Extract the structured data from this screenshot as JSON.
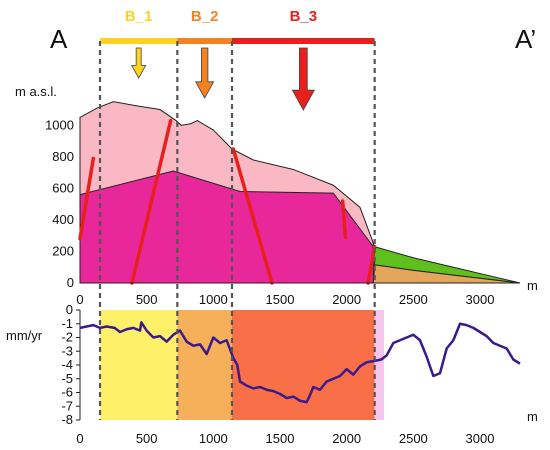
{
  "chart_data": [
    {
      "type": "area",
      "section_labels": {
        "start": "A",
        "end": "A’"
      },
      "xlabel": "m",
      "ylabel": "m a.s.l.",
      "xlim": [
        0,
        3300
      ],
      "ylim": [
        0,
        1300
      ],
      "x_ticks": [
        0,
        500,
        1000,
        1500,
        2000,
        2500,
        3000
      ],
      "y_ticks": [
        0,
        200,
        400,
        600,
        800,
        1000
      ],
      "blocks": [
        {
          "name": "B_1",
          "x_range": [
            150,
            730
          ],
          "color": "#ffd21f",
          "arrow_size": "small"
        },
        {
          "name": "B_2",
          "x_range": [
            730,
            1140
          ],
          "color": "#f5821f",
          "arrow_size": "medium"
        },
        {
          "name": "B_3",
          "x_range": [
            1140,
            2210
          ],
          "color": "#e8201c",
          "arrow_size": "large"
        }
      ],
      "surface_profile": {
        "x": [
          0,
          130,
          250,
          450,
          600,
          720,
          760,
          830,
          880,
          1000,
          1140,
          1300,
          1600,
          1900,
          2100,
          2210,
          2500,
          2800,
          3100,
          3300
        ],
        "y": [
          1050,
          1110,
          1150,
          1120,
          1100,
          1030,
          1000,
          1010,
          1030,
          970,
          850,
          780,
          720,
          620,
          480,
          230,
          160,
          100,
          40,
          0
        ]
      },
      "upper_unit_top": {
        "color": "#f9b8c4"
      },
      "lower_unit_top": {
        "x": [
          0,
          700,
          1200,
          1900,
          2200
        ],
        "y": [
          560,
          710,
          580,
          570,
          230
        ],
        "color": "#e8289a"
      },
      "right_wedges": [
        {
          "color": "#5fbf1c"
        },
        {
          "color": "#e3a65c"
        }
      ],
      "faults": [
        {
          "x": [
            0,
            100
          ],
          "y": [
            280,
            790
          ]
        },
        {
          "x": [
            390,
            680
          ],
          "y": [
            0,
            1030
          ]
        },
        {
          "x": [
            1150,
            1440
          ],
          "y": [
            850,
            0
          ]
        },
        {
          "x": [
            1970,
            1990
          ],
          "y": [
            520,
            290
          ]
        },
        {
          "x": [
            2160,
            2210
          ],
          "y": [
            0,
            230
          ]
        }
      ],
      "fault_color": "#e8201c",
      "dashed_verticals_x": [
        150,
        730,
        1140,
        2210
      ]
    },
    {
      "type": "line",
      "xlabel": "m",
      "ylabel": "mm/yr",
      "xlim": [
        0,
        3300
      ],
      "ylim": [
        -8,
        0
      ],
      "x_ticks": [
        0,
        500,
        1000,
        1500,
        2000,
        2500,
        3000
      ],
      "y_ticks": [
        0,
        -1,
        -2,
        -3,
        -4,
        -5,
        -6,
        -7,
        -8
      ],
      "shaded_bands": [
        {
          "x_range": [
            150,
            730
          ],
          "color": "#fff06a"
        },
        {
          "x_range": [
            730,
            1140
          ],
          "color": "#f7b05a"
        },
        {
          "x_range": [
            1140,
            2210
          ],
          "color": "#f97048"
        },
        {
          "x_range": [
            2210,
            2280
          ],
          "color": "#f4c6ee"
        }
      ],
      "series": [
        {
          "color": "#3a1b8c",
          "x": [
            0,
            50,
            100,
            150,
            200,
            260,
            300,
            350,
            400,
            450,
            460,
            500,
            550,
            600,
            650,
            700,
            750,
            800,
            850,
            900,
            950,
            1000,
            1050,
            1100,
            1150,
            1180,
            1200,
            1250,
            1300,
            1350,
            1400,
            1450,
            1500,
            1550,
            1600,
            1650,
            1700,
            1720,
            1750,
            1800,
            1850,
            1900,
            1950,
            2000,
            2050,
            2100,
            2150,
            2210,
            2260,
            2300,
            2350,
            2400,
            2450,
            2500,
            2550,
            2600,
            2650,
            2700,
            2750,
            2800,
            2850,
            2900,
            2950,
            3000,
            3050,
            3100,
            3150,
            3200,
            3250,
            3300
          ],
          "y": [
            -1.3,
            -1.2,
            -1.1,
            -1.3,
            -1.2,
            -1.3,
            -1.6,
            -1.4,
            -1.3,
            -1.5,
            -0.9,
            -1.5,
            -2.0,
            -1.9,
            -2.3,
            -1.8,
            -1.5,
            -2.3,
            -2.6,
            -2.5,
            -3.2,
            -2.0,
            -2.4,
            -2.2,
            -3.5,
            -4.0,
            -5.2,
            -5.5,
            -5.7,
            -5.6,
            -5.8,
            -5.9,
            -6.1,
            -6.4,
            -6.3,
            -6.6,
            -6.7,
            -6.3,
            -5.6,
            -5.8,
            -5.2,
            -5.0,
            -4.8,
            -4.3,
            -4.7,
            -4.1,
            -3.8,
            -3.7,
            -3.6,
            -3.3,
            -2.4,
            -2.2,
            -2.0,
            -1.8,
            -2.2,
            -3.4,
            -4.8,
            -4.6,
            -2.8,
            -2.2,
            -1.0,
            -1.1,
            -1.3,
            -1.6,
            -1.9,
            -2.4,
            -2.6,
            -2.8,
            -3.6,
            -3.9
          ]
        }
      ],
      "dashed_verticals_x": [
        150,
        730,
        1140,
        2210
      ]
    }
  ]
}
